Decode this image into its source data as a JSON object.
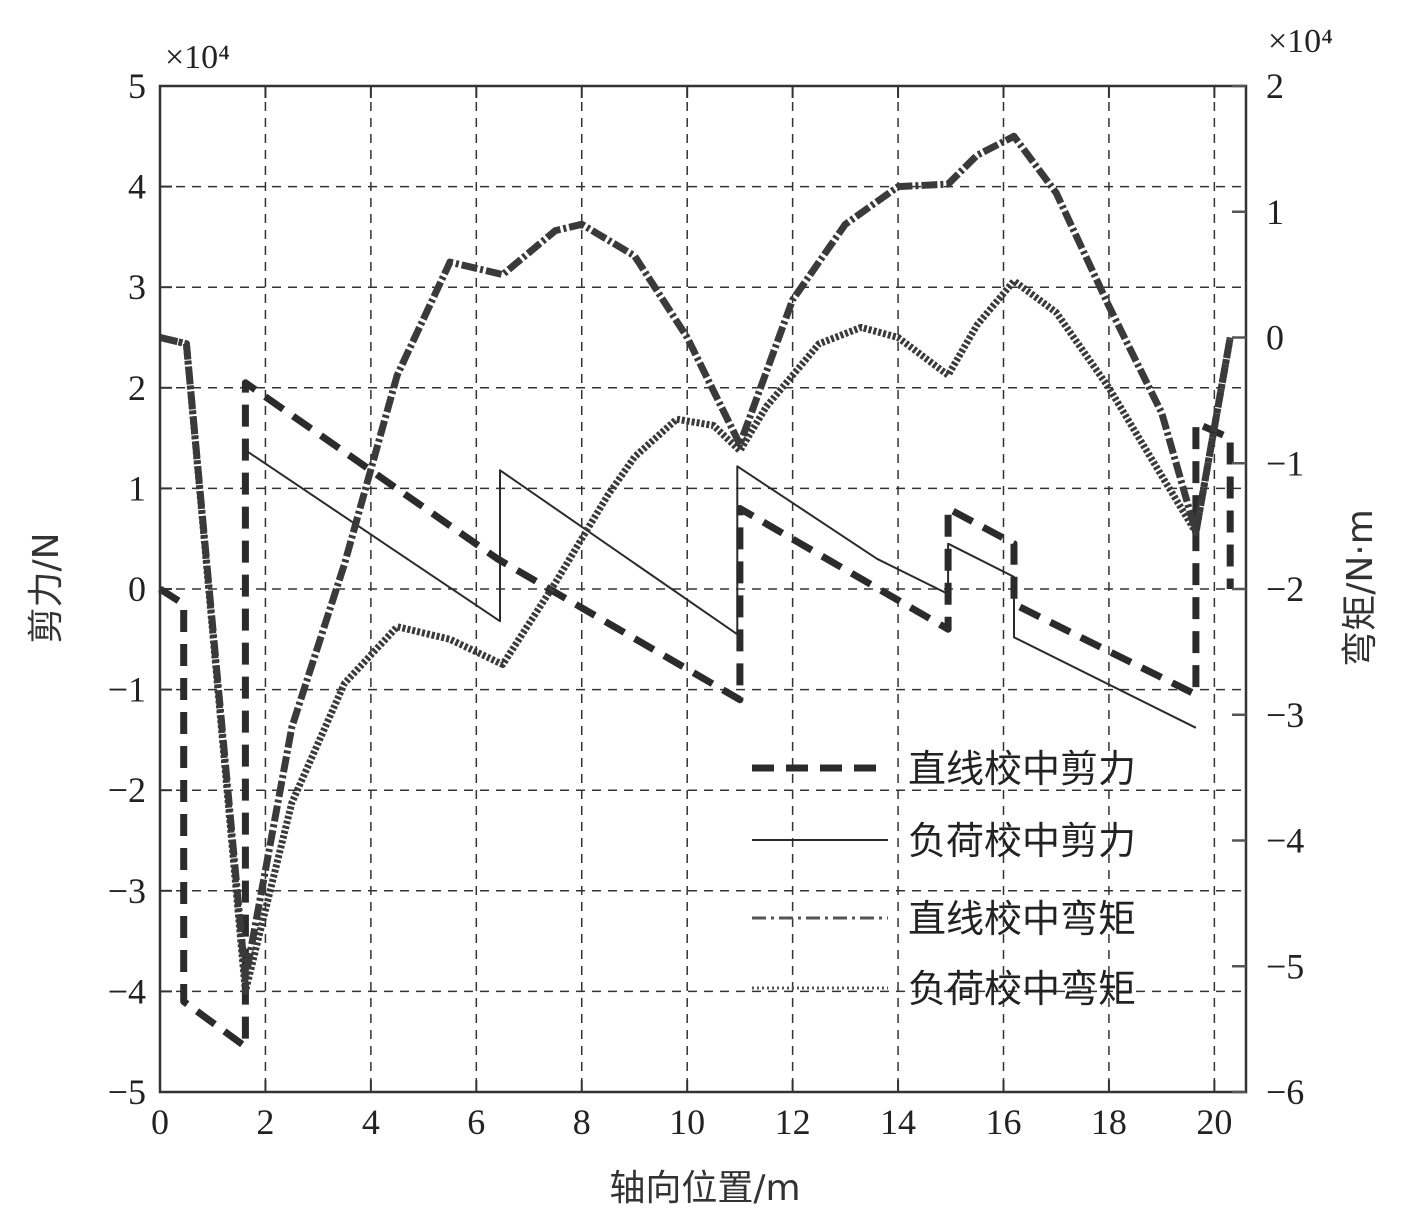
{
  "chart_data": {
    "type": "line",
    "xlabel": "轴向位置/m",
    "ylabel_left": "剪力/N",
    "ylabel_right": "弯矩/N·m",
    "left_exponent": "×10⁴",
    "right_exponent": "×10⁴",
    "xlim": [
      0,
      20.6
    ],
    "ylim_left": [
      -5,
      5
    ],
    "ylim_right": [
      -6,
      2
    ],
    "xticks": [
      0,
      2,
      4,
      6,
      8,
      10,
      12,
      14,
      16,
      18,
      20
    ],
    "yticks_left": [
      5,
      4,
      3,
      2,
      1,
      0,
      -1,
      -2,
      -3,
      -4,
      -5
    ],
    "yticks_right": [
      2,
      1,
      0,
      -1,
      -2,
      -3,
      -4,
      -5,
      -6
    ],
    "xtick_labels": [
      "0",
      "2",
      "4",
      "6",
      "8",
      "10",
      "12",
      "14",
      "16",
      "18",
      "20"
    ],
    "ytick_labels_left": [
      "5",
      "4",
      "3",
      "2",
      "1",
      "0",
      "−1",
      "−2",
      "−3",
      "−4",
      "−5"
    ],
    "ytick_labels_right": [
      "2",
      "1",
      "0",
      "−1",
      "−2",
      "−3",
      "−4",
      "−5",
      "−6"
    ],
    "grid": true,
    "legend_position": "bottom-right",
    "series": [
      {
        "name": "直线校中剪力",
        "axis": "left",
        "style": "dashed-thick",
        "x": [
          0,
          0.45,
          0.45,
          1.62,
          1.62,
          6.4,
          6.4,
          11.0,
          11.0,
          14.95,
          14.95,
          16.2,
          16.2,
          19.65,
          19.65,
          20.3,
          20.3
        ],
        "y": [
          0,
          -0.15,
          -4.1,
          -4.55,
          2.05,
          0.3,
          0.3,
          -1.1,
          0.8,
          -0.4,
          0.8,
          0.45,
          -0.15,
          -1.05,
          1.65,
          1.5,
          0.0
        ]
      },
      {
        "name": "负荷校中剪力",
        "axis": "left",
        "style": "solid-thin",
        "x": [
          1.62,
          6.45,
          6.45,
          10.95,
          10.95,
          13.6,
          14.95,
          14.95,
          16.2,
          16.2,
          19.65
        ],
        "y": [
          1.38,
          -0.32,
          1.18,
          -0.45,
          1.22,
          0.3,
          -0.05,
          0.45,
          0.12,
          -0.48,
          -1.38
        ]
      },
      {
        "name": "直线校中弯矩",
        "axis": "right",
        "style": "dashdot-thick",
        "x": [
          0,
          0.5,
          1.62,
          2.5,
          3.5,
          4.5,
          5.5,
          6.5,
          7.5,
          8.0,
          9.0,
          10.0,
          11.0,
          12.0,
          13.0,
          14.0,
          14.95,
          15.5,
          16.2,
          17.0,
          18.0,
          19.0,
          19.65,
          20.3
        ],
        "y": [
          0,
          -0.05,
          -5.1,
          -3.1,
          -1.8,
          -0.3,
          0.6,
          0.5,
          0.85,
          0.9,
          0.65,
          0.0,
          -0.85,
          0.3,
          0.9,
          1.2,
          1.22,
          1.45,
          1.6,
          1.15,
          0.25,
          -0.6,
          -1.55,
          0.0
        ]
      },
      {
        "name": "负荷校中弯矩",
        "axis": "right",
        "style": "dotted-thick",
        "x": [
          0,
          0.5,
          1.62,
          2.5,
          3.5,
          4.5,
          5.5,
          6.5,
          7.5,
          8.5,
          9.0,
          9.8,
          10.5,
          11.0,
          11.5,
          12.5,
          13.3,
          14.0,
          14.95,
          15.5,
          16.2,
          17.0,
          18.0,
          19.0,
          19.65,
          20.3
        ],
        "y": [
          0,
          -0.05,
          -5.2,
          -3.7,
          -2.75,
          -2.3,
          -2.4,
          -2.6,
          -1.95,
          -1.25,
          -0.95,
          -0.65,
          -0.7,
          -0.9,
          -0.55,
          -0.05,
          0.08,
          0.0,
          -0.3,
          0.1,
          0.45,
          0.2,
          -0.4,
          -1.1,
          -1.55,
          0.0
        ]
      }
    ]
  }
}
